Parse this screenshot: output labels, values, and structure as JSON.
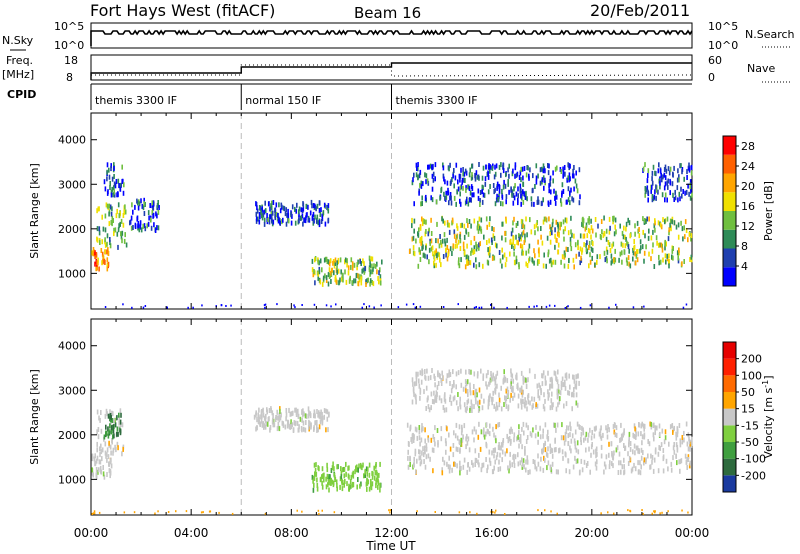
{
  "header": {
    "station": "Fort Hays West (fitACF)",
    "beam": "Beam 16",
    "date": "20/Feb/2011"
  },
  "info_panels": {
    "nsky_label": "N.Sky",
    "nsearch_label": "N.Search",
    "nsky_ticks": [
      "10^5",
      "10^0"
    ],
    "nsearch_ticks": [
      "10^5",
      "10^0"
    ],
    "freq_label": "Freq.",
    "freq_unit": "[MHz]",
    "freq_ticks": [
      "18",
      "8"
    ],
    "nave_label": "Nave",
    "nave_ticks": [
      "60",
      "0"
    ],
    "cpid_label": "CPID",
    "cpid_segments": [
      {
        "label": "themis 3300 IF",
        "start_hour": 0,
        "end_hour": 6
      },
      {
        "label": "normal 150 IF",
        "start_hour": 6,
        "end_hour": 12
      },
      {
        "label": "themis 3300 IF",
        "start_hour": 12,
        "end_hour": 24
      }
    ]
  },
  "chart_data": [
    {
      "type": "heatmap",
      "name": "power",
      "ylabel": "Slant Range [km]",
      "xlabel": "Time UT",
      "xlim": [
        0,
        24
      ],
      "ylim": [
        200,
        4600
      ],
      "x_ticks": [
        "00:00",
        "04:00",
        "08:00",
        "12:00",
        "16:00",
        "20:00",
        "00:00"
      ],
      "y_ticks": [
        1000,
        2000,
        3000,
        4000
      ],
      "colorbar_label": "Power [dB]",
      "colorbar_ticks": [
        4,
        8,
        12,
        16,
        20,
        24,
        28
      ],
      "colorbar_range": [
        0,
        30
      ],
      "colors": [
        "#0000ff",
        "#1f3faf",
        "#2e8b57",
        "#6fbf3f",
        "#f0e000",
        "#ffa500",
        "#ff6000",
        "#ff0000"
      ],
      "regions": [
        {
          "t": [
            0.0,
            0.7
          ],
          "r": [
            1150,
            1600
          ],
          "value": 22
        },
        {
          "t": [
            0.2,
            1.4
          ],
          "r": [
            1600,
            2600
          ],
          "value": 12
        },
        {
          "t": [
            0.5,
            1.3
          ],
          "r": [
            2800,
            3500
          ],
          "value": 5
        },
        {
          "t": [
            1.5,
            2.7
          ],
          "r": [
            2000,
            2700
          ],
          "value": 6
        },
        {
          "t": [
            6.5,
            9.5
          ],
          "r": [
            2150,
            2650
          ],
          "value": 5
        },
        {
          "t": [
            8.8,
            11.6
          ],
          "r": [
            800,
            1400
          ],
          "value": 14
        },
        {
          "t": [
            12.6,
            24.0
          ],
          "r": [
            1200,
            2300
          ],
          "value": 14
        },
        {
          "t": [
            12.8,
            19.5
          ],
          "r": [
            2600,
            3500
          ],
          "value": 5
        },
        {
          "t": [
            22.0,
            24.0
          ],
          "r": [
            2700,
            3500
          ],
          "value": 6
        }
      ]
    },
    {
      "type": "heatmap",
      "name": "velocity",
      "ylabel": "Slant Range [km]",
      "xlabel": "Time UT",
      "xlim": [
        0,
        24
      ],
      "ylim": [
        200,
        4600
      ],
      "x_ticks": [
        "00:00",
        "04:00",
        "08:00",
        "12:00",
        "16:00",
        "20:00",
        "00:00"
      ],
      "y_ticks": [
        1000,
        2000,
        3000,
        4000
      ],
      "colorbar_label": "Velocity [m s^-1]",
      "colorbar_ticks": [
        200,
        100,
        50,
        15,
        -15,
        -50,
        -100,
        -200
      ],
      "colorbar_range": [
        -250,
        250
      ],
      "colors": [
        "#1a3a9f",
        "#2e6b3e",
        "#3f9f3f",
        "#7fcf3f",
        "#c8c8c8",
        "#ffa500",
        "#ff6a00",
        "#ff2000",
        "#e60000"
      ],
      "regions": [
        {
          "t": [
            0.0,
            0.8
          ],
          "r": [
            1100,
            1600
          ],
          "value": 0
        },
        {
          "t": [
            0.2,
            1.3
          ],
          "r": [
            1600,
            2600
          ],
          "value": 0
        },
        {
          "t": [
            0.5,
            1.2
          ],
          "r": [
            2000,
            2500
          ],
          "value": -140
        },
        {
          "t": [
            6.5,
            9.5
          ],
          "r": [
            2150,
            2650
          ],
          "value": 0
        },
        {
          "t": [
            8.8,
            11.6
          ],
          "r": [
            800,
            1400
          ],
          "value": -60
        },
        {
          "t": [
            12.6,
            24.0
          ],
          "r": [
            1200,
            2300
          ],
          "value": 0
        },
        {
          "t": [
            12.8,
            19.5
          ],
          "r": [
            2600,
            3500
          ],
          "value": 0
        }
      ]
    }
  ]
}
